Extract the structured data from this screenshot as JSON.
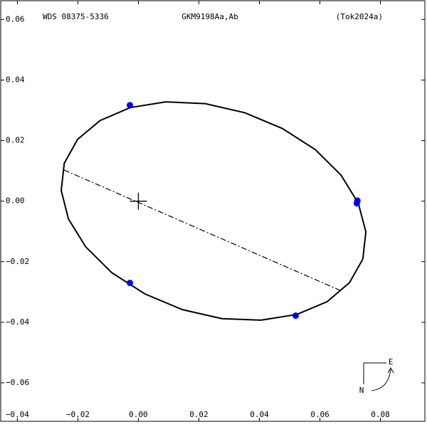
{
  "chart_data": {
    "type": "scatter",
    "title": "GKM9198Aa,Ab",
    "annotations": [
      "WDS 08375-5336",
      "(Tok2024a)"
    ],
    "compass": {
      "east": "E",
      "north": "N"
    },
    "xlim": [
      -0.0455,
      0.0947
    ],
    "ylim": [
      -0.0727,
      0.0662
    ],
    "xticks": [
      {
        "value": -0.04,
        "label": "−0.04"
      },
      {
        "value": -0.02,
        "label": "−0.02"
      },
      {
        "value": 0,
        "label": "0.00"
      },
      {
        "value": 0.02,
        "label": "0.02"
      },
      {
        "value": 0.04,
        "label": "0.04"
      },
      {
        "value": 0.06,
        "label": "0.06"
      },
      {
        "value": 0.08,
        "label": "0.08"
      }
    ],
    "yticks": [
      {
        "value": -0.06,
        "label": "−0.06"
      },
      {
        "value": -0.04,
        "label": "−0.04"
      },
      {
        "value": -0.02,
        "label": "−0.02"
      },
      {
        "value": 0,
        "label": "0.00"
      },
      {
        "value": 0.02,
        "label": "0.02"
      },
      {
        "value": 0.04,
        "label": "0.04"
      },
      {
        "value": 0.06,
        "label": "0.06"
      }
    ],
    "series": [
      {
        "mode": "line",
        "color": "#000000",
        "x": [
          0.0742,
          0.0698,
          0.0624,
          0.0524,
          0.0405,
          0.0276,
          0.0145,
          0.0021,
          -0.0088,
          -0.0174,
          -0.0231,
          -0.0255,
          -0.0245,
          -0.0201,
          -0.0127,
          -0.0027,
          0.0091,
          0.0221,
          0.0352,
          0.0476,
          0.0585,
          0.067,
          0.0727,
          0.0752,
          0.0742
        ],
        "y": [
          -0.0191,
          -0.0269,
          -0.0332,
          -0.0374,
          -0.0393,
          -0.0388,
          -0.0358,
          -0.0306,
          -0.0236,
          -0.0151,
          -0.0059,
          0.0035,
          0.0125,
          0.0204,
          0.0266,
          0.0309,
          0.0328,
          0.0322,
          0.0292,
          0.024,
          0.017,
          0.0086,
          -0.0007,
          -0.0101,
          -0.0191
        ]
      },
      {
        "mode": "dashdot",
        "color": "#000000",
        "x": [
          -0.0246,
          0.067
        ],
        "y": [
          0.0103,
          -0.0296
        ]
      },
      {
        "mode": "cross",
        "color": "#000000",
        "x": [
          0
        ],
        "y": [
          0
        ]
      },
      {
        "mode": "markers",
        "color": "#0000ff",
        "x": [
          -0.0028,
          0.0724,
          0.0722,
          -0.0028,
          0.052
        ],
        "y": [
          0.0317,
          0.0002,
          -0.0007,
          -0.027,
          -0.0378
        ]
      }
    ]
  }
}
